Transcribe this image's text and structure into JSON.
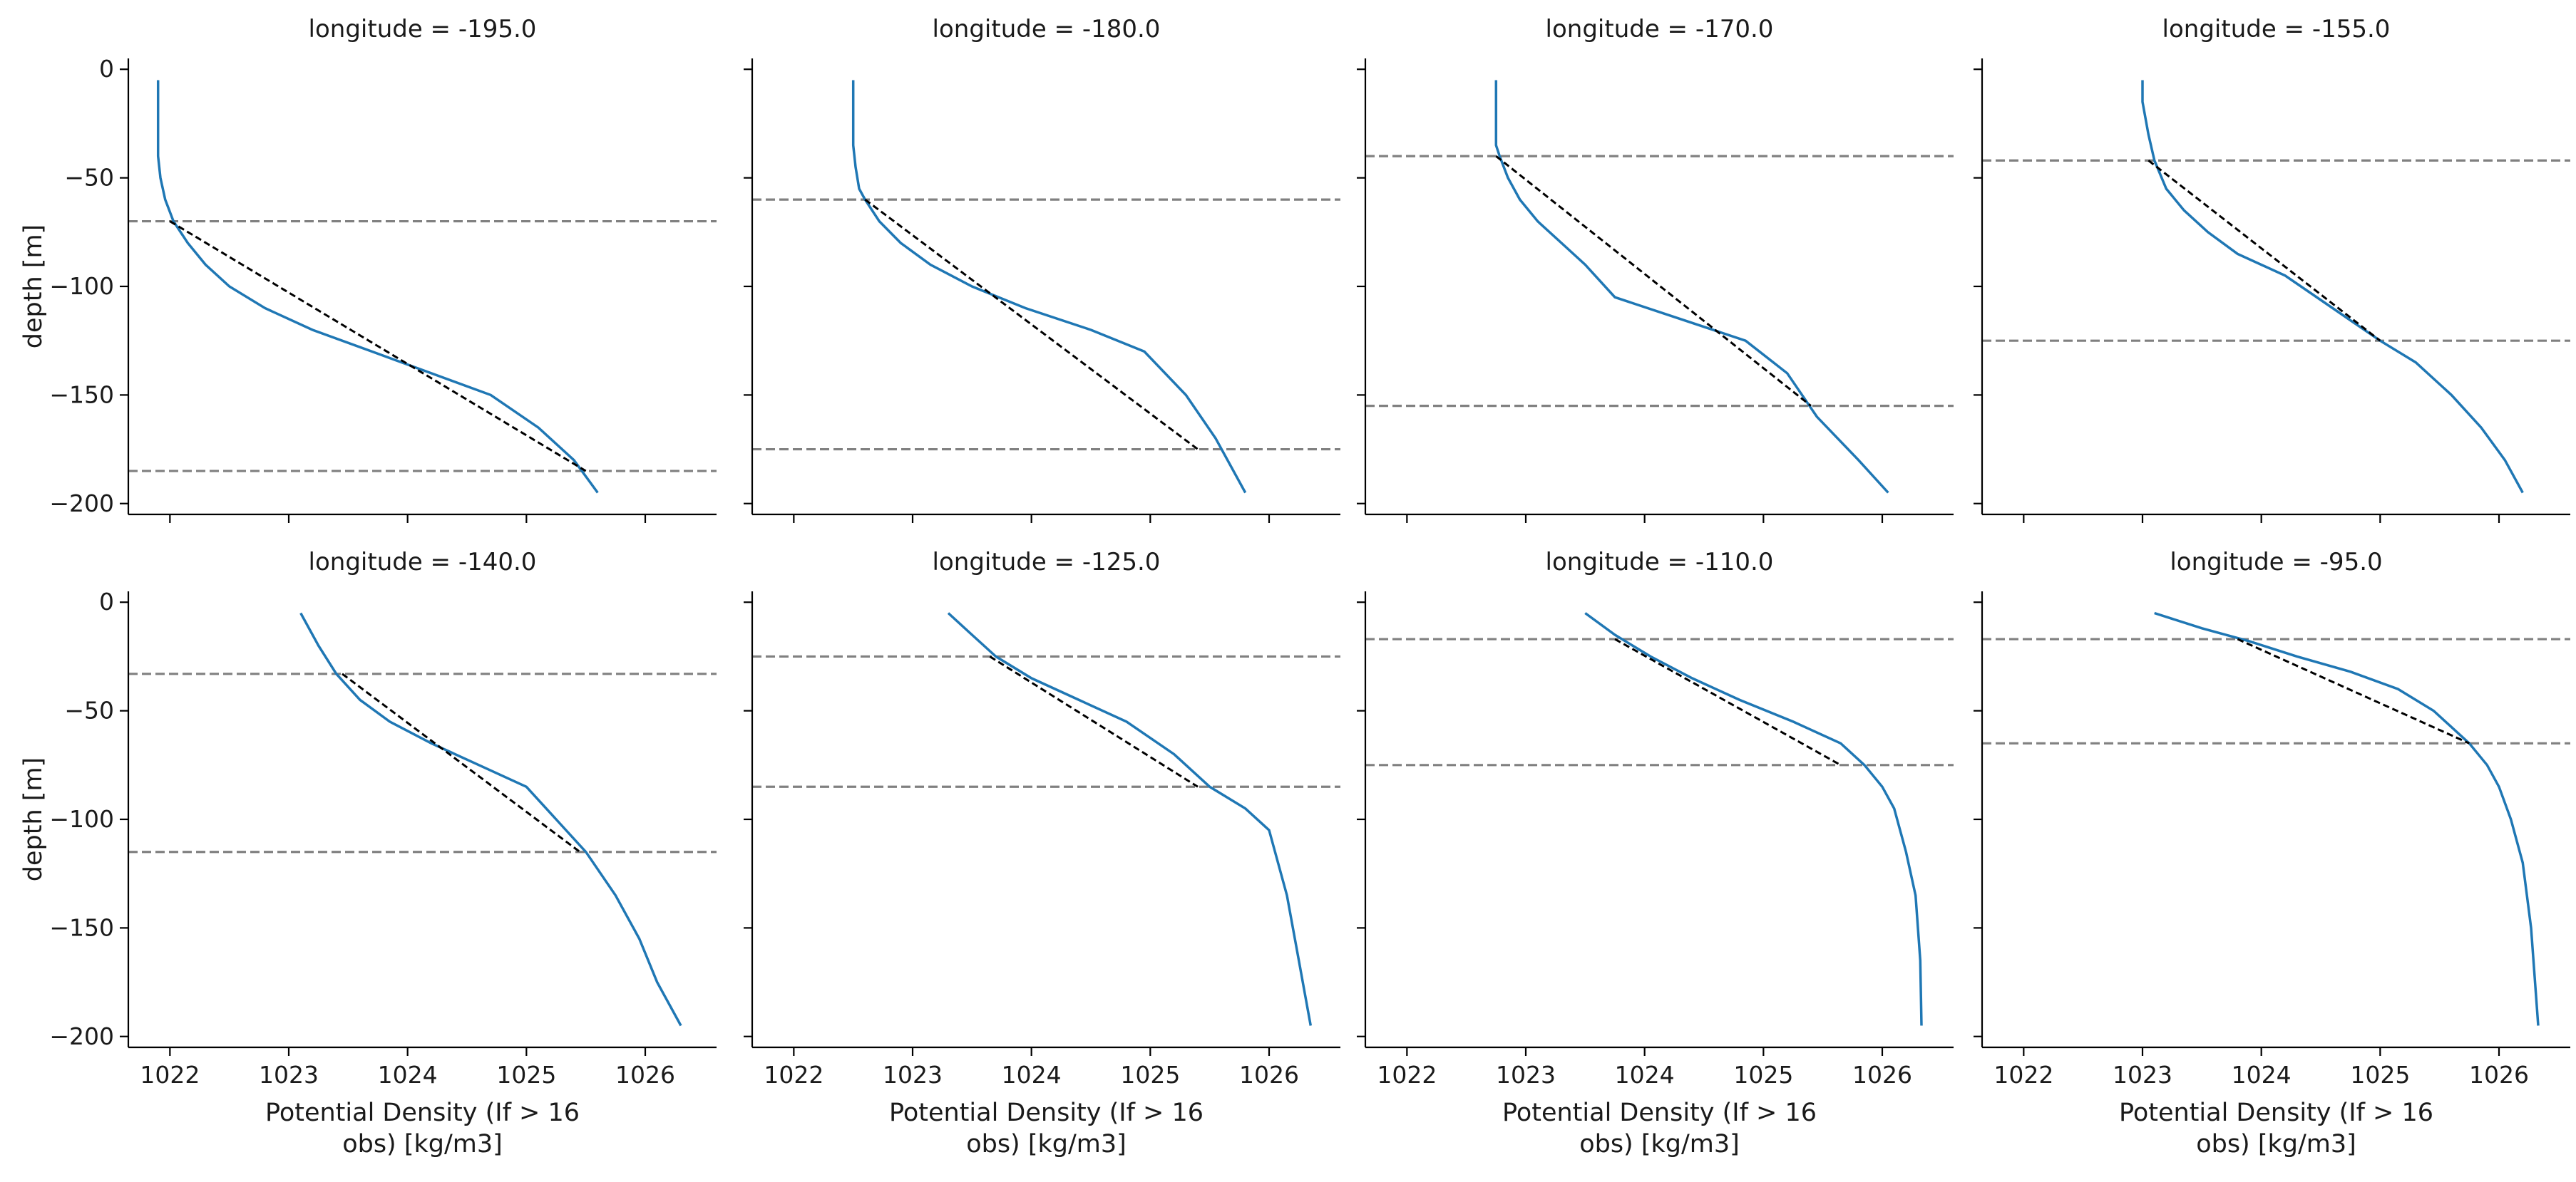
{
  "figure": {
    "xlabel_line1": "Potential Density (If > 16",
    "xlabel_line2": "obs) [kg/m3]",
    "ylabel": "depth [m]"
  },
  "colors": {
    "profile": "#1f77b4",
    "mixed_layer_bounds": "#808080",
    "fit_line": "#000000"
  },
  "chart_data": [
    {
      "type": "line",
      "title": "longitude = -195.0",
      "xlim": [
        1021.65,
        1026.6
      ],
      "ylim": [
        -205,
        5
      ],
      "xticks": [
        1022,
        1023,
        1024,
        1025,
        1026
      ],
      "yticks": [
        0,
        -50,
        -100,
        -150,
        -200
      ],
      "series": [
        {
          "role": "profile",
          "x": [
            1021.9,
            1021.9,
            1021.9,
            1021.92,
            1021.96,
            1022.03,
            1022.15,
            1022.3,
            1022.5,
            1022.8,
            1023.2,
            1023.7,
            1024.2,
            1024.7,
            1025.1,
            1025.4,
            1025.6
          ],
          "y": [
            -5,
            -20,
            -40,
            -50,
            -60,
            -70,
            -80,
            -90,
            -100,
            -110,
            -120,
            -130,
            -140,
            -150,
            -165,
            -180,
            -195
          ]
        },
        {
          "role": "fit",
          "x": [
            1022.0,
            1025.5
          ],
          "y": [
            -70,
            -185
          ]
        },
        {
          "role": "bound",
          "y": -70
        },
        {
          "role": "bound",
          "y": -185
        }
      ]
    },
    {
      "type": "line",
      "title": "longitude = -180.0",
      "xlim": [
        1021.65,
        1026.6
      ],
      "ylim": [
        -205,
        5
      ],
      "xticks": [
        1022,
        1023,
        1024,
        1025,
        1026
      ],
      "yticks": [
        0,
        -50,
        -100,
        -150,
        -200
      ],
      "series": [
        {
          "role": "profile",
          "x": [
            1022.5,
            1022.5,
            1022.5,
            1022.52,
            1022.55,
            1022.6,
            1022.72,
            1022.9,
            1023.15,
            1023.5,
            1023.95,
            1024.5,
            1024.95,
            1025.3,
            1025.55,
            1025.8
          ],
          "y": [
            -5,
            -20,
            -35,
            -45,
            -55,
            -60,
            -70,
            -80,
            -90,
            -100,
            -110,
            -120,
            -130,
            -150,
            -170,
            -195
          ]
        },
        {
          "role": "fit",
          "x": [
            1022.6,
            1025.4
          ],
          "y": [
            -60,
            -175
          ]
        },
        {
          "role": "bound",
          "y": -60
        },
        {
          "role": "bound",
          "y": -175
        }
      ]
    },
    {
      "type": "line",
      "title": "longitude = -170.0",
      "xlim": [
        1021.65,
        1026.6
      ],
      "ylim": [
        -205,
        5
      ],
      "xticks": [
        1022,
        1023,
        1024,
        1025,
        1026
      ],
      "yticks": [
        0,
        -50,
        -100,
        -150,
        -200
      ],
      "series": [
        {
          "role": "profile",
          "x": [
            1022.75,
            1022.75,
            1022.75,
            1022.78,
            1022.85,
            1022.95,
            1023.1,
            1023.3,
            1023.5,
            1023.75,
            1024.3,
            1024.85,
            1025.2,
            1025.45,
            1025.8,
            1026.05
          ],
          "y": [
            -5,
            -20,
            -35,
            -40,
            -50,
            -60,
            -70,
            -80,
            -90,
            -105,
            -115,
            -125,
            -140,
            -160,
            -180,
            -195
          ]
        },
        {
          "role": "fit",
          "x": [
            1022.75,
            1025.4
          ],
          "y": [
            -40,
            -155
          ]
        },
        {
          "role": "bound",
          "y": -40
        },
        {
          "role": "bound",
          "y": -155
        }
      ]
    },
    {
      "type": "line",
      "title": "longitude = -155.0",
      "xlim": [
        1021.65,
        1026.6
      ],
      "ylim": [
        -205,
        5
      ],
      "xticks": [
        1022,
        1023,
        1024,
        1025,
        1026
      ],
      "yticks": [
        0,
        -50,
        -100,
        -150,
        -200
      ],
      "series": [
        {
          "role": "profile",
          "x": [
            1023.0,
            1023.0,
            1023.05,
            1023.1,
            1023.2,
            1023.35,
            1023.55,
            1023.8,
            1024.2,
            1024.6,
            1025.0,
            1025.3,
            1025.6,
            1025.85,
            1026.05,
            1026.2
          ],
          "y": [
            -5,
            -15,
            -30,
            -42,
            -55,
            -65,
            -75,
            -85,
            -95,
            -110,
            -125,
            -135,
            -150,
            -165,
            -180,
            -195
          ]
        },
        {
          "role": "fit",
          "x": [
            1023.05,
            1025.0
          ],
          "y": [
            -42,
            -125
          ]
        },
        {
          "role": "bound",
          "y": -42
        },
        {
          "role": "bound",
          "y": -125
        }
      ]
    },
    {
      "type": "line",
      "title": "longitude = -140.0",
      "xlim": [
        1021.65,
        1026.6
      ],
      "ylim": [
        -205,
        5
      ],
      "xticks": [
        1022,
        1023,
        1024,
        1025,
        1026
      ],
      "yticks": [
        0,
        -50,
        -100,
        -150,
        -200
      ],
      "series": [
        {
          "role": "profile",
          "x": [
            1023.1,
            1023.25,
            1023.4,
            1023.6,
            1023.85,
            1024.2,
            1024.6,
            1025.0,
            1025.25,
            1025.5,
            1025.75,
            1025.95,
            1026.1,
            1026.3
          ],
          "y": [
            -5,
            -20,
            -33,
            -45,
            -55,
            -65,
            -75,
            -85,
            -100,
            -115,
            -135,
            -155,
            -175,
            -195
          ]
        },
        {
          "role": "fit",
          "x": [
            1023.45,
            1025.45
          ],
          "y": [
            -33,
            -115
          ]
        },
        {
          "role": "bound",
          "y": -33
        },
        {
          "role": "bound",
          "y": -115
        }
      ]
    },
    {
      "type": "line",
      "title": "longitude = -125.0",
      "xlim": [
        1021.65,
        1026.6
      ],
      "ylim": [
        -205,
        5
      ],
      "xticks": [
        1022,
        1023,
        1024,
        1025,
        1026
      ],
      "yticks": [
        0,
        -50,
        -100,
        -150,
        -200
      ],
      "series": [
        {
          "role": "profile",
          "x": [
            1023.3,
            1023.5,
            1023.7,
            1024.0,
            1024.4,
            1024.8,
            1025.2,
            1025.5,
            1025.8,
            1026.0,
            1026.15,
            1026.25,
            1026.35
          ],
          "y": [
            -5,
            -15,
            -25,
            -35,
            -45,
            -55,
            -70,
            -85,
            -95,
            -105,
            -135,
            -165,
            -195
          ]
        },
        {
          "role": "fit",
          "x": [
            1023.65,
            1025.4
          ],
          "y": [
            -25,
            -85
          ]
        },
        {
          "role": "bound",
          "y": -25
        },
        {
          "role": "bound",
          "y": -85
        }
      ]
    },
    {
      "type": "line",
      "title": "longitude = -110.0",
      "xlim": [
        1021.65,
        1026.6
      ],
      "ylim": [
        -205,
        5
      ],
      "xticks": [
        1022,
        1023,
        1024,
        1025,
        1026
      ],
      "yticks": [
        0,
        -50,
        -100,
        -150,
        -200
      ],
      "series": [
        {
          "role": "profile",
          "x": [
            1023.5,
            1023.75,
            1024.05,
            1024.4,
            1024.8,
            1025.25,
            1025.65,
            1025.85,
            1026.0,
            1026.1,
            1026.2,
            1026.28,
            1026.32,
            1026.33
          ],
          "y": [
            -5,
            -15,
            -25,
            -35,
            -45,
            -55,
            -65,
            -75,
            -85,
            -95,
            -115,
            -135,
            -165,
            -195
          ]
        },
        {
          "role": "fit",
          "x": [
            1023.75,
            1025.65
          ],
          "y": [
            -17,
            -75
          ]
        },
        {
          "role": "bound",
          "y": -17
        },
        {
          "role": "bound",
          "y": -75
        }
      ]
    },
    {
      "type": "line",
      "title": "longitude = -95.0",
      "xlim": [
        1021.65,
        1026.6
      ],
      "ylim": [
        -205,
        5
      ],
      "xticks": [
        1022,
        1023,
        1024,
        1025,
        1026
      ],
      "yticks": [
        0,
        -50,
        -100,
        -150,
        -200
      ],
      "series": [
        {
          "role": "profile",
          "x": [
            1023.1,
            1023.5,
            1023.9,
            1024.3,
            1024.75,
            1025.15,
            1025.45,
            1025.75,
            1025.9,
            1026.0,
            1026.1,
            1026.2,
            1026.27,
            1026.33
          ],
          "y": [
            -5,
            -12,
            -18,
            -25,
            -32,
            -40,
            -50,
            -65,
            -75,
            -85,
            -100,
            -120,
            -150,
            -195
          ]
        },
        {
          "role": "fit",
          "x": [
            1023.8,
            1025.75
          ],
          "y": [
            -17,
            -65
          ]
        },
        {
          "role": "bound",
          "y": -17
        },
        {
          "role": "bound",
          "y": -65
        }
      ]
    }
  ]
}
